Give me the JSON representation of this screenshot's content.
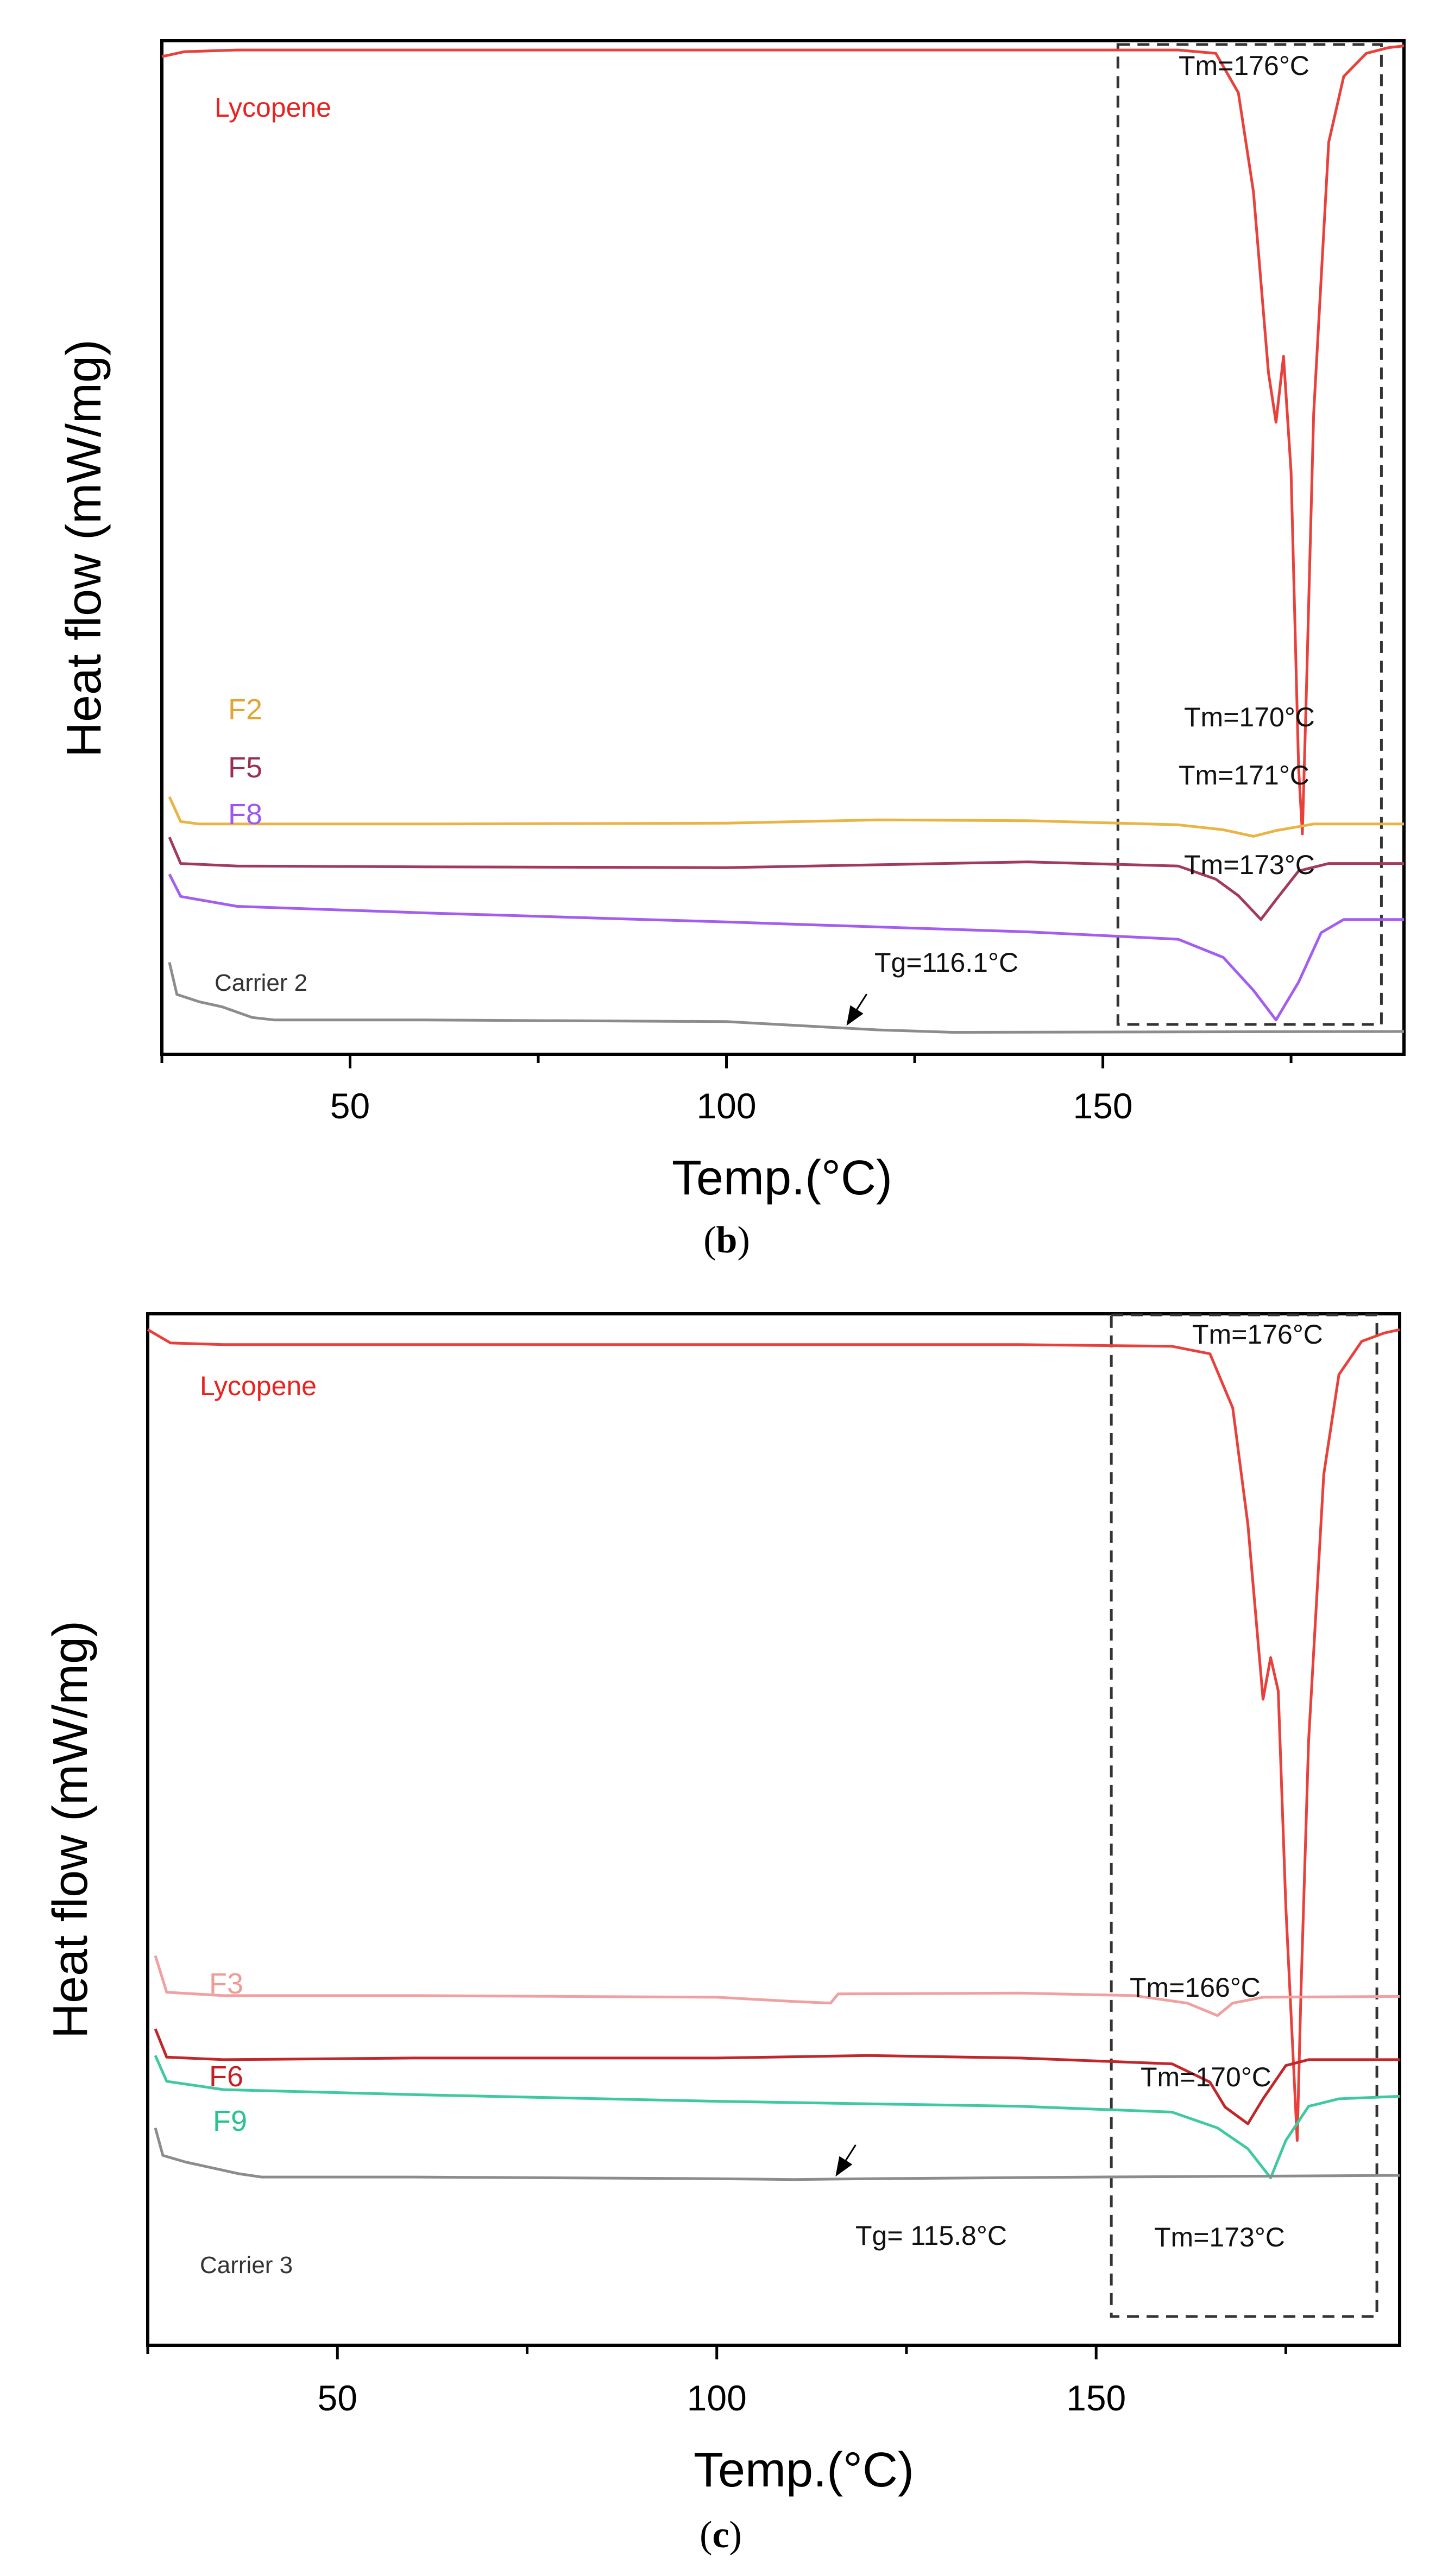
{
  "chart_data": [
    {
      "type": "line",
      "panel_label": "b",
      "title": "",
      "xlabel": "Temp.(°C)",
      "ylabel": "Heat flow (mW/mg)",
      "xlim": [
        25,
        190
      ],
      "x_ticks": [
        50,
        100,
        150
      ],
      "y_ticks": [],
      "grid": false,
      "highlight_box": {
        "x_from": 152,
        "x_to": 187,
        "style": "dashed"
      },
      "series": [
        {
          "name": "Lycopene",
          "color": "#e8413c",
          "label_color": "#e8231f",
          "points": [
            [
              25,
              1.6
            ],
            [
              28,
              1.0
            ],
            [
              35,
              0.8
            ],
            [
              60,
              0.8
            ],
            [
              100,
              0.8
            ],
            [
              140,
              0.8
            ],
            [
              160,
              0.8
            ],
            [
              165,
              1.2
            ],
            [
              168,
              6
            ],
            [
              170,
              18
            ],
            [
              172,
              40
            ],
            [
              173,
              46
            ],
            [
              174,
              38
            ],
            [
              175,
              52
            ],
            [
              176,
              88
            ],
            [
              176.5,
              96
            ],
            [
              177,
              80
            ],
            [
              178,
              45
            ],
            [
              180,
              12
            ],
            [
              182,
              4
            ],
            [
              185,
              1.2
            ],
            [
              188,
              0.5
            ],
            [
              190,
              0.3
            ]
          ]
        },
        {
          "name": "F2",
          "color": "#e9b444",
          "label_color": "#e2a532",
          "points": [
            [
              26,
              91.5
            ],
            [
              27.5,
              94.5
            ],
            [
              30,
              94.8
            ],
            [
              60,
              94.8
            ],
            [
              100,
              94.7
            ],
            [
              120,
              94.3
            ],
            [
              140,
              94.4
            ],
            [
              160,
              94.9
            ],
            [
              166,
              95.5
            ],
            [
              170,
              96.3
            ],
            [
              173,
              95.6
            ],
            [
              178,
              94.8
            ],
            [
              190,
              94.8
            ]
          ]
        },
        {
          "name": "F5",
          "color": "#a03a60",
          "label_color": "#9b2d55",
          "points": [
            [
              26,
              96.4
            ],
            [
              27.5,
              99.6
            ],
            [
              35,
              99.9
            ],
            [
              60,
              100.0
            ],
            [
              100,
              100.1
            ],
            [
              140,
              99.4
            ],
            [
              160,
              99.9
            ],
            [
              165,
              101.5
            ],
            [
              168,
              103.5
            ],
            [
              171,
              106.4
            ],
            [
              173,
              104
            ],
            [
              176,
              100.5
            ],
            [
              180,
              99.6
            ],
            [
              190,
              99.6
            ]
          ]
        },
        {
          "name": "F8",
          "color": "#a35df0",
          "label_color": "#9b57f0",
          "points": [
            [
              26,
              100.9
            ],
            [
              27.5,
              103.6
            ],
            [
              35,
              104.8
            ],
            [
              60,
              105.6
            ],
            [
              100,
              106.7
            ],
            [
              140,
              107.9
            ],
            [
              160,
              108.8
            ],
            [
              166,
              111
            ],
            [
              170,
              115
            ],
            [
              173,
              118.6
            ],
            [
              176,
              114
            ],
            [
              179,
              108
            ],
            [
              182,
              106.4
            ],
            [
              190,
              106.4
            ]
          ]
        },
        {
          "name": "Carrier 2",
          "color": "#8c8c8c",
          "label_color": "#333333",
          "points": [
            [
              26,
              111.6
            ],
            [
              27,
              115.5
            ],
            [
              30,
              116.4
            ],
            [
              33,
              117.0
            ],
            [
              37,
              118.3
            ],
            [
              40,
              118.6
            ],
            [
              60,
              118.6
            ],
            [
              100,
              118.8
            ],
            [
              110,
              119.3
            ],
            [
              120,
              119.8
            ],
            [
              130,
              120.1
            ],
            [
              190,
              120.0
            ]
          ]
        }
      ],
      "annotations": [
        {
          "text": "Tm=176°C",
          "series": "Lycopene",
          "x": 176
        },
        {
          "text": "Tm=170°C",
          "series": "F2",
          "x": 170
        },
        {
          "text": "Tm=171°C",
          "series": "F5",
          "x": 171
        },
        {
          "text": "Tm=173°C",
          "series": "F8",
          "x": 173
        },
        {
          "text": "Tg=116.1°C",
          "series": "Carrier 2",
          "x": 116.1
        }
      ]
    },
    {
      "type": "line",
      "panel_label": "c",
      "title": "",
      "xlabel": "Temp.(°C)",
      "ylabel": "Heat flow (mW/mg)",
      "xlim": [
        25,
        190
      ],
      "x_ticks": [
        50,
        100,
        150
      ],
      "y_ticks": [],
      "grid": false,
      "highlight_box": {
        "x_from": 152,
        "x_to": 187,
        "style": "dashed"
      },
      "series": [
        {
          "name": "Lycopene",
          "color": "#e8413c",
          "label_color": "#e8231f",
          "points": [
            [
              25,
              0.6
            ],
            [
              28,
              2.2
            ],
            [
              35,
              2.4
            ],
            [
              60,
              2.4
            ],
            [
              100,
              2.4
            ],
            [
              140,
              2.4
            ],
            [
              160,
              2.6
            ],
            [
              165,
              3.5
            ],
            [
              168,
              10
            ],
            [
              170,
              24
            ],
            [
              172,
              45
            ],
            [
              173,
              40
            ],
            [
              174,
              44
            ],
            [
              175,
              70
            ],
            [
              176.5,
              98
            ],
            [
              177,
              80
            ],
            [
              178,
              50
            ],
            [
              180,
              18
            ],
            [
              182,
              6
            ],
            [
              185,
              2.0
            ],
            [
              188,
              1.0
            ],
            [
              190,
              0.6
            ]
          ]
        },
        {
          "name": "F3",
          "color": "#f0a0a0",
          "label_color": "#f09a96",
          "points": [
            [
              26,
              75.8
            ],
            [
              27.5,
              80.2
            ],
            [
              35,
              80.6
            ],
            [
              60,
              80.6
            ],
            [
              100,
              80.8
            ],
            [
              110,
              81.3
            ],
            [
              115,
              81.5
            ],
            [
              116,
              80.4
            ],
            [
              140,
              80.3
            ],
            [
              155,
              80.6
            ],
            [
              162,
              81.5
            ],
            [
              166,
              83.0
            ],
            [
              168,
              81.5
            ],
            [
              172,
              80.8
            ],
            [
              190,
              80.7
            ]
          ]
        },
        {
          "name": "F6",
          "color": "#c0262a",
          "label_color": "#c41f24",
          "points": [
            [
              26,
              84.6
            ],
            [
              27.5,
              88.0
            ],
            [
              35,
              88.3
            ],
            [
              60,
              88.1
            ],
            [
              100,
              88.1
            ],
            [
              120,
              87.8
            ],
            [
              140,
              88.1
            ],
            [
              160,
              88.8
            ],
            [
              165,
              91
            ],
            [
              167,
              94
            ],
            [
              170,
              96.0
            ],
            [
              172,
              93
            ],
            [
              175,
              89
            ],
            [
              178,
              88.3
            ],
            [
              190,
              88.3
            ]
          ]
        },
        {
          "name": "F9",
          "color": "#3ec9a0",
          "label_color": "#26c48e",
          "points": [
            [
              26,
              87.8
            ],
            [
              27.5,
              90.9
            ],
            [
              35,
              91.9
            ],
            [
              60,
              92.5
            ],
            [
              100,
              93.3
            ],
            [
              140,
              93.9
            ],
            [
              160,
              94.6
            ],
            [
              166,
              96.5
            ],
            [
              170,
              99
            ],
            [
              173,
              102.5
            ],
            [
              175,
              98
            ],
            [
              178,
              93.9
            ],
            [
              182,
              93.0
            ],
            [
              190,
              92.7
            ]
          ]
        },
        {
          "name": "Carrier 3",
          "color": "#8c8c8c",
          "label_color": "#333333",
          "points": [
            [
              26,
              96.5
            ],
            [
              27,
              99.8
            ],
            [
              30,
              100.6
            ],
            [
              33,
              101.2
            ],
            [
              37,
              102.0
            ],
            [
              40,
              102.4
            ],
            [
              60,
              102.4
            ],
            [
              100,
              102.6
            ],
            [
              110,
              102.7
            ],
            [
              120,
              102.6
            ],
            [
              150,
              102.4
            ],
            [
              170,
              102.3
            ],
            [
              190,
              102.2
            ]
          ]
        }
      ],
      "annotations": [
        {
          "text": "Tm=176°C",
          "series": "Lycopene",
          "x": 176
        },
        {
          "text": "Tm=166°C",
          "series": "F3",
          "x": 166
        },
        {
          "text": "Tm=170°C",
          "series": "F6",
          "x": 170
        },
        {
          "text": "Tm=173°C",
          "series": "F9",
          "x": 173
        },
        {
          "text": "Tg= 115.8°C",
          "series": "Carrier 3",
          "x": 115.8
        }
      ]
    }
  ]
}
